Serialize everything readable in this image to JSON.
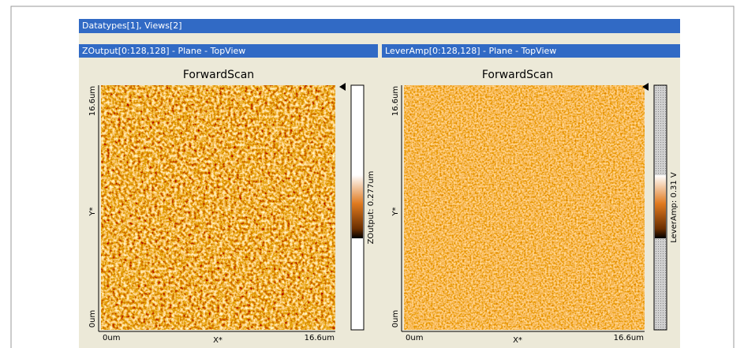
{
  "window": {
    "title": "Datatypes[1], Views[2]"
  },
  "views": [
    {
      "title": "ZOutput[0:128,128] - Plane - TopView",
      "plot_title": "ForwardScan",
      "y_axis": {
        "max_label": "16.6um",
        "label": "Y*",
        "min_label": "0um"
      },
      "x_axis": {
        "min_label": "0um",
        "label": "X*",
        "max_label": "16.6um"
      },
      "colorbar_label": "ZOutput: 0.277um"
    },
    {
      "title": "LeverAmp[0:128,128] - Plane - TopView",
      "plot_title": "ForwardScan",
      "y_axis": {
        "max_label": "16.6um",
        "label": "Y*",
        "min_label": "0um"
      },
      "x_axis": {
        "min_label": "0um",
        "label": "X*",
        "max_label": "16.6um"
      },
      "colorbar_label": "LeverAmp: 0.31 V"
    }
  ]
}
